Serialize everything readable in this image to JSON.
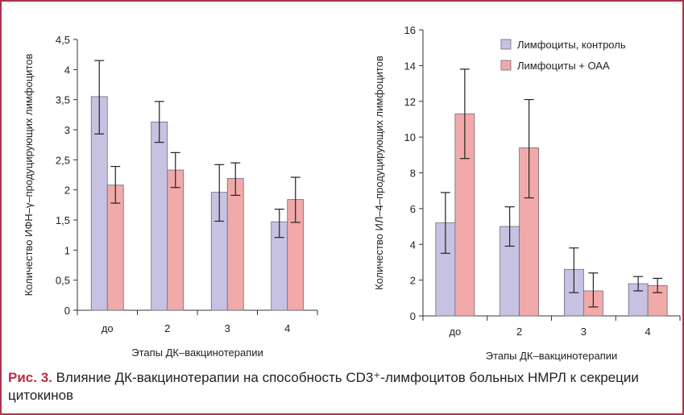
{
  "colors": {
    "control": "#c7c2e2",
    "oaa": "#f2a9a9",
    "frame": "#a8354f",
    "caption_accent": "#c42a45"
  },
  "chart_data": [
    {
      "type": "bar",
      "ylabel": "Количество ИФН–γ–продуцирующих лимфоцитов",
      "xlabel": "Этапы ДК–вакцинотерапии",
      "categories": [
        "до",
        "2",
        "3",
        "4"
      ],
      "ylim": [
        0,
        4.5
      ],
      "yticks": [
        0,
        0.5,
        1,
        1.5,
        2,
        2.5,
        3,
        3.5,
        4,
        4.5
      ],
      "ytick_labels": [
        "0",
        "0,5",
        "1",
        "1,5",
        "2",
        "2,5",
        "3",
        "3,5",
        "4",
        "4,5"
      ],
      "series": [
        {
          "key": "control",
          "values": [
            3.55,
            3.13,
            1.96,
            1.47
          ],
          "err_low": [
            2.93,
            2.79,
            1.48,
            1.21
          ],
          "err_high": [
            4.15,
            3.47,
            2.42,
            1.68
          ]
        },
        {
          "key": "oaa",
          "values": [
            2.08,
            2.33,
            2.19,
            1.84
          ],
          "err_low": [
            1.78,
            2.04,
            1.91,
            1.46
          ],
          "err_high": [
            2.39,
            2.62,
            2.45,
            2.21
          ]
        }
      ]
    },
    {
      "type": "bar",
      "ylabel": "Количество ИЛ–4–продуцирующих лимфоцитов",
      "xlabel": "Этапы ДК–вакцинотерапии",
      "categories": [
        "до",
        "2",
        "3",
        "4"
      ],
      "ylim": [
        0,
        16
      ],
      "yticks": [
        0,
        2,
        4,
        6,
        8,
        10,
        12,
        14,
        16
      ],
      "ytick_labels": [
        "0",
        "2",
        "4",
        "6",
        "8",
        "10",
        "12",
        "14",
        "16"
      ],
      "legend_position": "top-right",
      "series": [
        {
          "key": "control",
          "name": "Лимфоциты, контроль",
          "values": [
            5.2,
            5.0,
            2.6,
            1.8
          ],
          "err_low": [
            3.5,
            3.9,
            1.3,
            1.4
          ],
          "err_high": [
            6.9,
            6.1,
            3.8,
            2.2
          ]
        },
        {
          "key": "oaa",
          "name": "Лимфоциты + ОАА",
          "values": [
            11.3,
            9.4,
            1.4,
            1.7
          ],
          "err_low": [
            8.8,
            6.6,
            0.5,
            1.3
          ],
          "err_high": [
            13.8,
            12.1,
            2.4,
            2.1
          ]
        }
      ]
    }
  ],
  "caption": {
    "lead": "Рис. 3.",
    "text": " Влияние ДК-вакцинотерапии на способность CD3⁺-лимфоцитов больных НМРЛ к секреции цитокинов"
  }
}
